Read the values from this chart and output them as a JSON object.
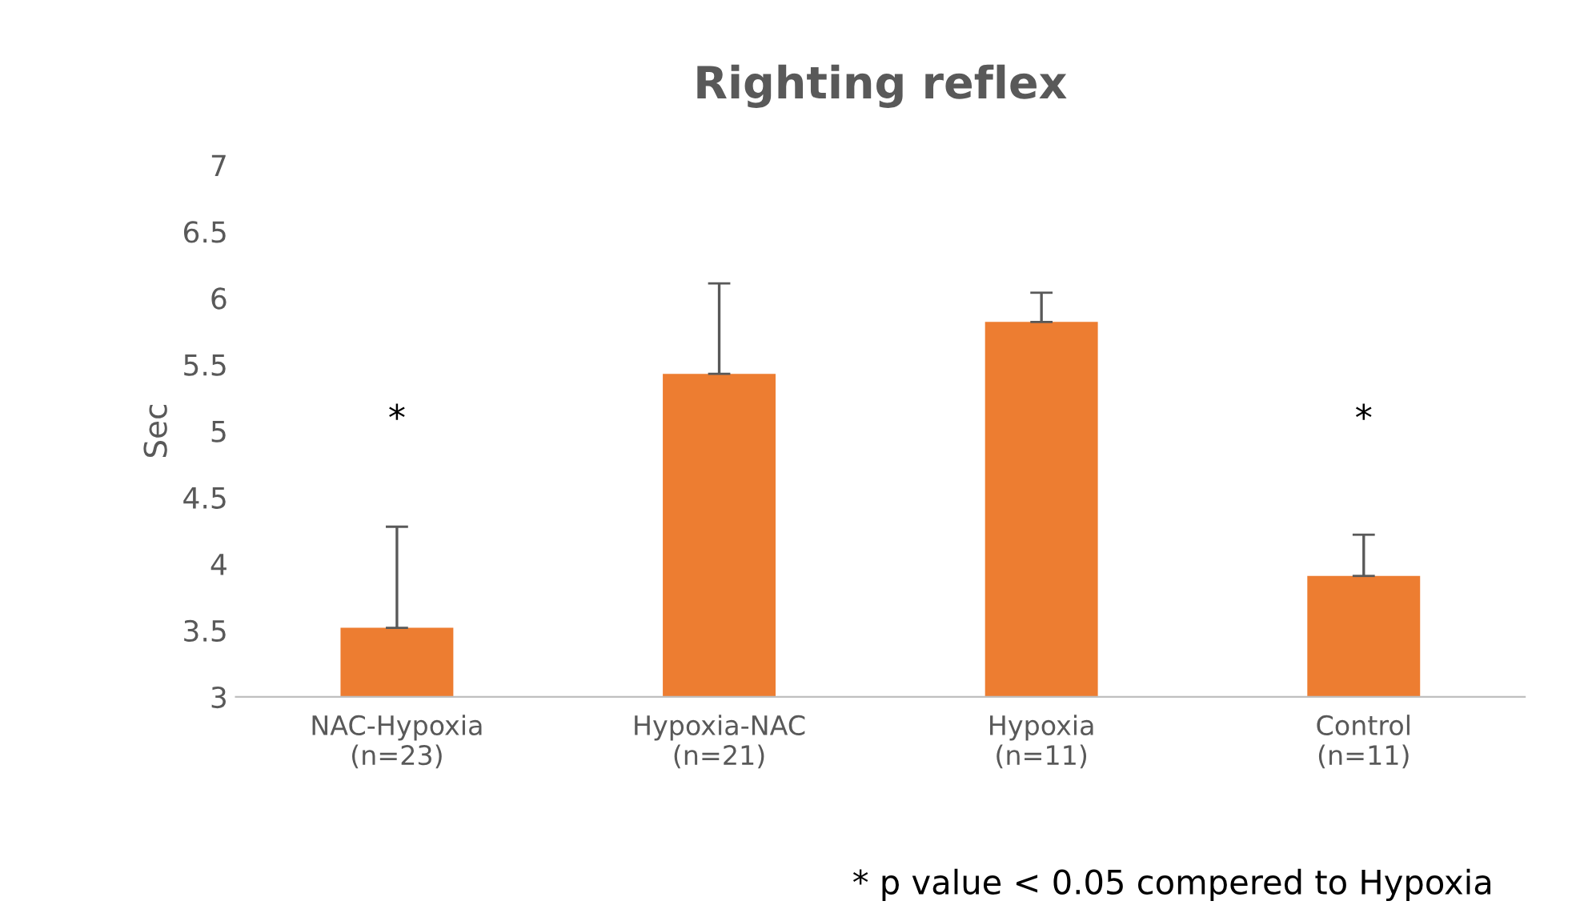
{
  "chart_data": {
    "type": "bar",
    "title": "Righting reflex",
    "ylabel": "Sec",
    "categories": [
      "NAC-Hypoxia\n(n=23)",
      "Hypoxia-NAC\n(n=21)",
      "Hypoxia\n(n=11)",
      "Control\n(n=11)"
    ],
    "values": [
      3.52,
      5.43,
      5.82,
      3.91
    ],
    "errors": [
      [
        3.52,
        4.28
      ],
      [
        5.43,
        6.11
      ],
      [
        5.82,
        6.04
      ],
      [
        3.91,
        4.22
      ]
    ],
    "color": "#ed7d31",
    "ylim": [
      3,
      7
    ],
    "yticks": [
      3,
      3.5,
      4,
      4.5,
      5,
      5.5,
      6,
      6.5,
      7
    ],
    "grid": false,
    "annotations": [
      "*",
      "*",
      "* p value < 0.05 compered to Hypoxia"
    ]
  }
}
